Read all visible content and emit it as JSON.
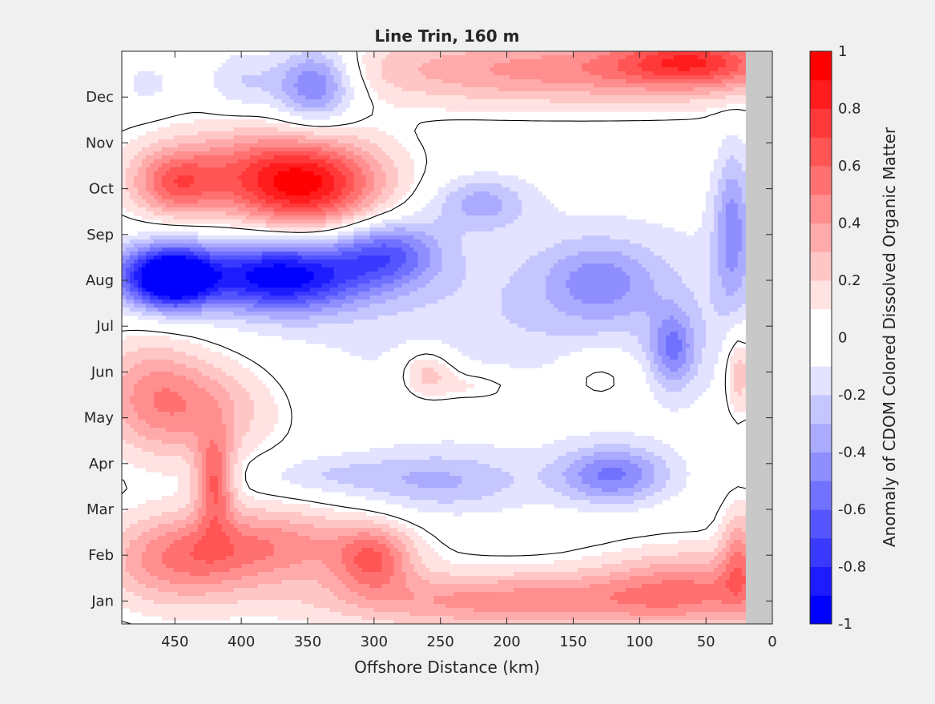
{
  "chart_data": {
    "type": "heatmap",
    "title": "Line Trin, 160 m",
    "xlabel": "Offshore Distance (km)",
    "colorbar_label": "Anomaly of CDOM Colored Dissolved Organic Matter",
    "x_ticks": [
      450,
      400,
      350,
      300,
      250,
      200,
      150,
      100,
      50,
      0
    ],
    "x_tick_labels": [
      "450",
      "400",
      "350",
      "300",
      "250",
      "200",
      "150",
      "100",
      "50",
      "0"
    ],
    "xlim": [
      490,
      0
    ],
    "x_direction": "reversed",
    "y_ticks": [
      "Jan",
      "Feb",
      "Mar",
      "Apr",
      "May",
      "Jun",
      "Jul",
      "Aug",
      "Sep",
      "Oct",
      "Nov",
      "Dec"
    ],
    "ylim": [
      0.5,
      13
    ],
    "clim": [
      -1,
      1
    ],
    "colorbar_ticks": [
      1,
      0.8,
      0.6,
      0.4,
      0.2,
      0,
      -0.2,
      -0.4,
      -0.6,
      -0.8,
      -1
    ],
    "colorbar_tick_labels": [
      "1",
      "0.8",
      "0.6",
      "0.4",
      "0.2",
      "0",
      "-0.2",
      "-0.4",
      "-0.6",
      "-0.8",
      "-1"
    ],
    "colormap": "red-white-blue, 20 levels",
    "contour_level": 0,
    "no_data_region_km": [
      0,
      20
    ],
    "no_data_color": "#c8c8c8",
    "month_ticks_y": [
      1,
      2,
      3,
      4,
      5,
      6,
      7,
      8,
      9,
      10,
      11,
      12
    ],
    "anomaly_features": [
      {
        "x": 372,
        "y": 8.1,
        "value": -0.95,
        "rx": 45,
        "ry": 0.55
      },
      {
        "x": 450,
        "y": 8.05,
        "value": -0.8,
        "rx": 20,
        "ry": 0.45
      },
      {
        "x": 470,
        "y": 8.1,
        "value": -0.5,
        "rx": 30,
        "ry": 0.5
      },
      {
        "x": 290,
        "y": 8.6,
        "value": -0.5,
        "rx": 28,
        "ry": 0.5
      },
      {
        "x": 220,
        "y": 9.7,
        "value": -0.3,
        "rx": 25,
        "ry": 0.4
      },
      {
        "x": 130,
        "y": 8.0,
        "value": -0.3,
        "rx": 30,
        "ry": 0.6
      },
      {
        "x": 75,
        "y": 6.5,
        "value": -0.4,
        "rx": 12,
        "ry": 0.6
      },
      {
        "x": 30,
        "y": 9.2,
        "value": -0.4,
        "rx": 10,
        "ry": 1.2
      },
      {
        "x": 160,
        "y": 7.3,
        "value": -0.2,
        "rx": 150,
        "ry": 1.6
      },
      {
        "x": 345,
        "y": 12.3,
        "value": -0.6,
        "rx": 22,
        "ry": 0.6
      },
      {
        "x": 400,
        "y": 12.4,
        "value": -0.25,
        "rx": 20,
        "ry": 0.5
      },
      {
        "x": 470,
        "y": 12.3,
        "value": -0.15,
        "rx": 18,
        "ry": 0.4
      },
      {
        "x": 120,
        "y": 3.75,
        "value": -0.5,
        "rx": 30,
        "ry": 0.45
      },
      {
        "x": 250,
        "y": 3.6,
        "value": -0.3,
        "rx": 50,
        "ry": 0.5
      },
      {
        "x": 340,
        "y": 3.75,
        "value": -0.15,
        "rx": 40,
        "ry": 0.3
      },
      {
        "x": 350,
        "y": 10.0,
        "value": 0.7,
        "rx": 40,
        "ry": 0.7
      },
      {
        "x": 450,
        "y": 10.1,
        "value": 0.45,
        "rx": 22,
        "ry": 0.5
      },
      {
        "x": 390,
        "y": 10.4,
        "value": 0.4,
        "rx": 60,
        "ry": 0.7
      },
      {
        "x": 420,
        "y": 3.6,
        "value": 0.55,
        "rx": 10,
        "ry": 0.7
      },
      {
        "x": 430,
        "y": 5.2,
        "value": 0.35,
        "rx": 40,
        "ry": 0.8
      },
      {
        "x": 470,
        "y": 5.6,
        "value": 0.3,
        "rx": 30,
        "ry": 0.9
      },
      {
        "x": 260,
        "y": 6.0,
        "value": 0.3,
        "rx": 15,
        "ry": 0.4
      },
      {
        "x": 220,
        "y": 5.7,
        "value": 0.2,
        "rx": 25,
        "ry": 0.3
      },
      {
        "x": 130,
        "y": 5.9,
        "value": 0.2,
        "rx": 25,
        "ry": 0.5
      },
      {
        "x": 300,
        "y": 1.9,
        "value": 0.45,
        "rx": 20,
        "ry": 0.5
      },
      {
        "x": 380,
        "y": 2.2,
        "value": 0.45,
        "rx": 60,
        "ry": 0.6
      },
      {
        "x": 450,
        "y": 1.8,
        "value": 0.35,
        "rx": 40,
        "ry": 0.7
      },
      {
        "x": 200,
        "y": 1.0,
        "value": 0.45,
        "rx": 100,
        "ry": 0.45
      },
      {
        "x": 60,
        "y": 1.3,
        "value": 0.4,
        "rx": 50,
        "ry": 0.6
      },
      {
        "x": 150,
        "y": 12.6,
        "value": 0.45,
        "rx": 130,
        "ry": 0.55
      },
      {
        "x": 60,
        "y": 12.8,
        "value": 0.5,
        "rx": 40,
        "ry": 0.4
      },
      {
        "x": 25,
        "y": 6.0,
        "value": 0.35,
        "rx": 8,
        "ry": 0.7
      },
      {
        "x": 25,
        "y": 2.0,
        "value": 0.35,
        "rx": 10,
        "ry": 0.8
      }
    ]
  }
}
